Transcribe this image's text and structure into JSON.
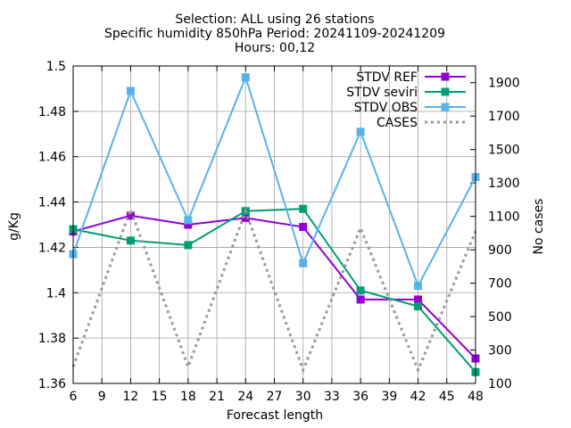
{
  "chart_data": {
    "type": "line",
    "title_lines": [
      "Selection: ALL using     26 stations",
      "Specific humidity 850hPa   Period: 20241109-20241209",
      "Hours: 00,12"
    ],
    "xlabel": "Forecast length",
    "ylabel": "g/Kg",
    "y2label": "No cases",
    "x": [
      6,
      12,
      18,
      24,
      30,
      36,
      42,
      48
    ],
    "xlim": [
      6,
      48
    ],
    "xticks": [
      6,
      9,
      12,
      15,
      18,
      21,
      24,
      27,
      30,
      33,
      36,
      39,
      42,
      45,
      48
    ],
    "ylim": [
      1.36,
      1.5
    ],
    "yticks": [
      1.36,
      1.38,
      1.4,
      1.42,
      1.44,
      1.46,
      1.48,
      1.5
    ],
    "ytick_labels": [
      "1.36",
      "1.38",
      "1.4",
      "1.42",
      "1.44",
      "1.46",
      "1.48",
      "1.5"
    ],
    "y2lim": [
      100,
      2000
    ],
    "y2ticks": [
      100,
      300,
      500,
      700,
      900,
      1100,
      1300,
      1500,
      1700,
      1900
    ],
    "legend_position": "top-right",
    "series": [
      {
        "name": "STDV REF",
        "axis": "y",
        "color": "#9400d3",
        "style": "solid",
        "marker": "square",
        "values": [
          1.427,
          1.434,
          1.43,
          1.433,
          1.429,
          1.397,
          1.397,
          1.371
        ]
      },
      {
        "name": "STDV seviri",
        "axis": "y",
        "color": "#009e73",
        "style": "solid",
        "marker": "square",
        "values": [
          1.428,
          1.423,
          1.421,
          1.436,
          1.437,
          1.401,
          1.394,
          1.365
        ]
      },
      {
        "name": "STDV OBS",
        "axis": "y",
        "color": "#56b4e9",
        "style": "solid",
        "marker": "square",
        "values": [
          1.417,
          1.489,
          1.432,
          1.495,
          1.413,
          1.471,
          1.403,
          1.451
        ]
      },
      {
        "name": "CASES",
        "axis": "y2",
        "color": "#999999",
        "style": "dotted",
        "marker": "none",
        "x": [
          6,
          12,
          18,
          24,
          30,
          36,
          42,
          48
        ],
        "values": [
          200,
          1140,
          200,
          1130,
          180,
          1030,
          180,
          1010
        ]
      }
    ]
  }
}
